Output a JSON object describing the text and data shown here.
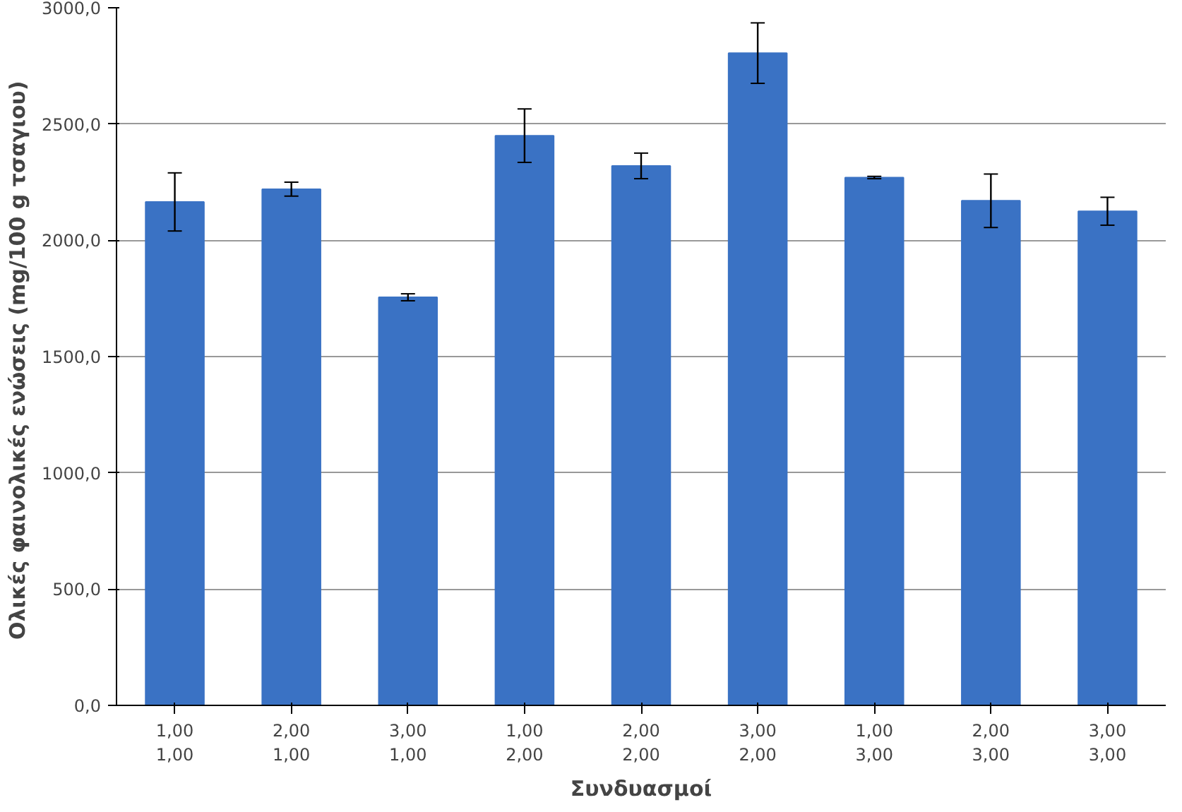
{
  "chart_data": {
    "type": "bar",
    "xlabel": "Συνδυασμοί",
    "ylabel": "Ολικές φαινολικές ενώσεις  (mg/100 g τσαγιου)",
    "categories": [
      "1,00\n1,00",
      "2,00\n1,00",
      "3,00\n1,00",
      "1,00\n2,00",
      "2,00\n2,00",
      "3,00\n2,00",
      "1,00\n3,00",
      "2,00\n3,00",
      "3,00\n3,00"
    ],
    "values": [
      2165,
      2220,
      1755,
      2450,
      2320,
      2805,
      2270,
      2170,
      2125
    ],
    "errors": [
      125,
      30,
      15,
      115,
      55,
      130,
      5,
      115,
      60
    ],
    "color": "#3a72c4",
    "ylim": [
      0,
      3000
    ],
    "yticks": [
      {
        "value": 0,
        "label": "0,0"
      },
      {
        "value": 500,
        "label": "500,0"
      },
      {
        "value": 1000,
        "label": "1000,0"
      },
      {
        "value": 1500,
        "label": "1500,0"
      },
      {
        "value": 2000,
        "label": "2000,0"
      },
      {
        "value": 2500,
        "label": "2500,0"
      },
      {
        "value": 3000,
        "label": "3000,0"
      }
    ],
    "grid": "y"
  }
}
